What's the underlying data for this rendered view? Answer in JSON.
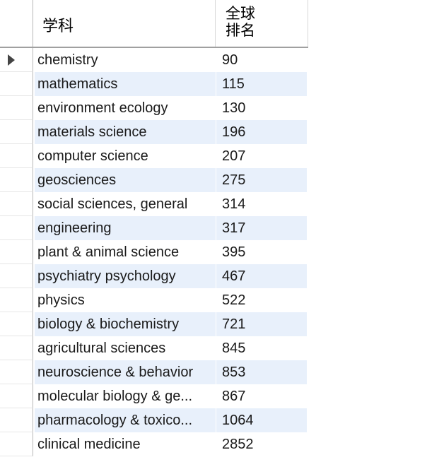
{
  "columns": {
    "subject": "学科",
    "rank": "全球排名"
  },
  "rows": [
    {
      "subject": "chemistry",
      "rank": "90"
    },
    {
      "subject": "mathematics",
      "rank": "115"
    },
    {
      "subject": "environment ecology",
      "rank": "130"
    },
    {
      "subject": "materials science",
      "rank": "196"
    },
    {
      "subject": "computer science",
      "rank": "207"
    },
    {
      "subject": "geosciences",
      "rank": "275"
    },
    {
      "subject": "social sciences, general",
      "rank": "314"
    },
    {
      "subject": "engineering",
      "rank": "317"
    },
    {
      "subject": "plant & animal science",
      "rank": "395"
    },
    {
      "subject": "psychiatry psychology",
      "rank": "467"
    },
    {
      "subject": "physics",
      "rank": "522"
    },
    {
      "subject": "biology & biochemistry",
      "rank": "721"
    },
    {
      "subject": "agricultural sciences",
      "rank": "845"
    },
    {
      "subject": "neuroscience & behavior",
      "rank": "853"
    },
    {
      "subject": "molecular biology & ge...",
      "rank": "867"
    },
    {
      "subject": "pharmacology & toxico...",
      "rank": "1064"
    },
    {
      "subject": "clinical medicine",
      "rank": "2852"
    }
  ],
  "current_row_index": 0,
  "icons": {
    "current_row": "row-pointer-caret-icon"
  }
}
